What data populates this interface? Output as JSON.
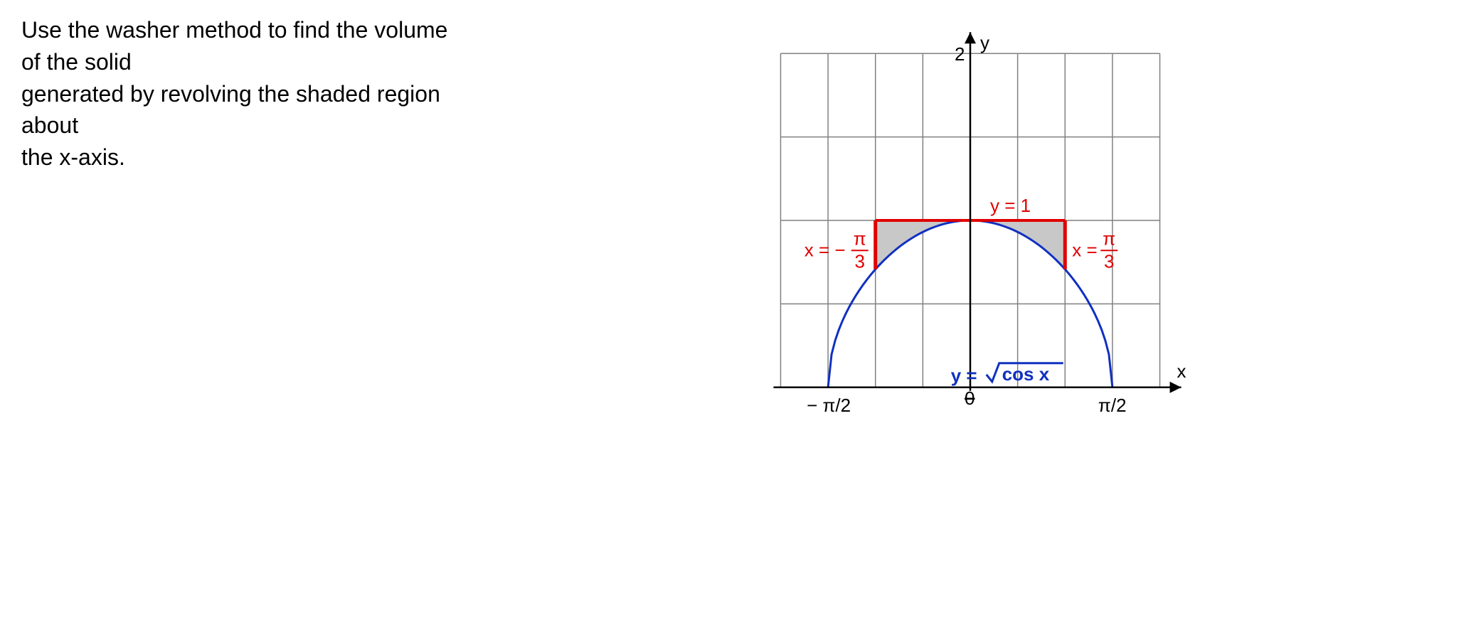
{
  "problem": {
    "line1": "Use the washer method to find the volume of the solid",
    "line2": "generated by revolving the shaded region about",
    "line3": "the x-axis."
  },
  "chart": {
    "type": "line",
    "background_color": "#ffffff",
    "grid_color": "#808080",
    "axis_color": "#000000",
    "curve_color": "#1030c0",
    "boundary_color": "#e00000",
    "shaded_color": "#c8c8c8",
    "xlim": [
      -2.2,
      2.2
    ],
    "ylim": [
      -0.15,
      2.15
    ],
    "x_grid_lines": [
      -2.0944,
      -1.5708,
      -1.0472,
      -0.5236,
      0,
      0.5236,
      1.0472,
      1.5708,
      2.0944
    ],
    "y_grid_lines": [
      0,
      0.5,
      1.0,
      1.5,
      2.0
    ],
    "y_axis_label": "y",
    "x_axis_label": "x",
    "y_tick_label": "2",
    "x_tick_labels": {
      "neg": "− π/2",
      "pos": "π/2"
    },
    "curve_label": "y = √cos x",
    "curve_label_parts": {
      "prefix": "y = ",
      "under_root": "cos x"
    },
    "top_boundary_label": "y = 1",
    "left_boundary_label": {
      "prefix": "x = −",
      "num": "π",
      "den": "3"
    },
    "right_boundary_label": {
      "prefix": "x = ",
      "num": "π",
      "den": "3"
    },
    "curve_domain": [
      -1.5708,
      1.5708
    ],
    "top_line_y": 1.0,
    "vlines_x": [
      -1.0472,
      1.0472
    ],
    "vlines_yrange": [
      0.7071,
      1.0
    ],
    "curve_samples": 80
  }
}
